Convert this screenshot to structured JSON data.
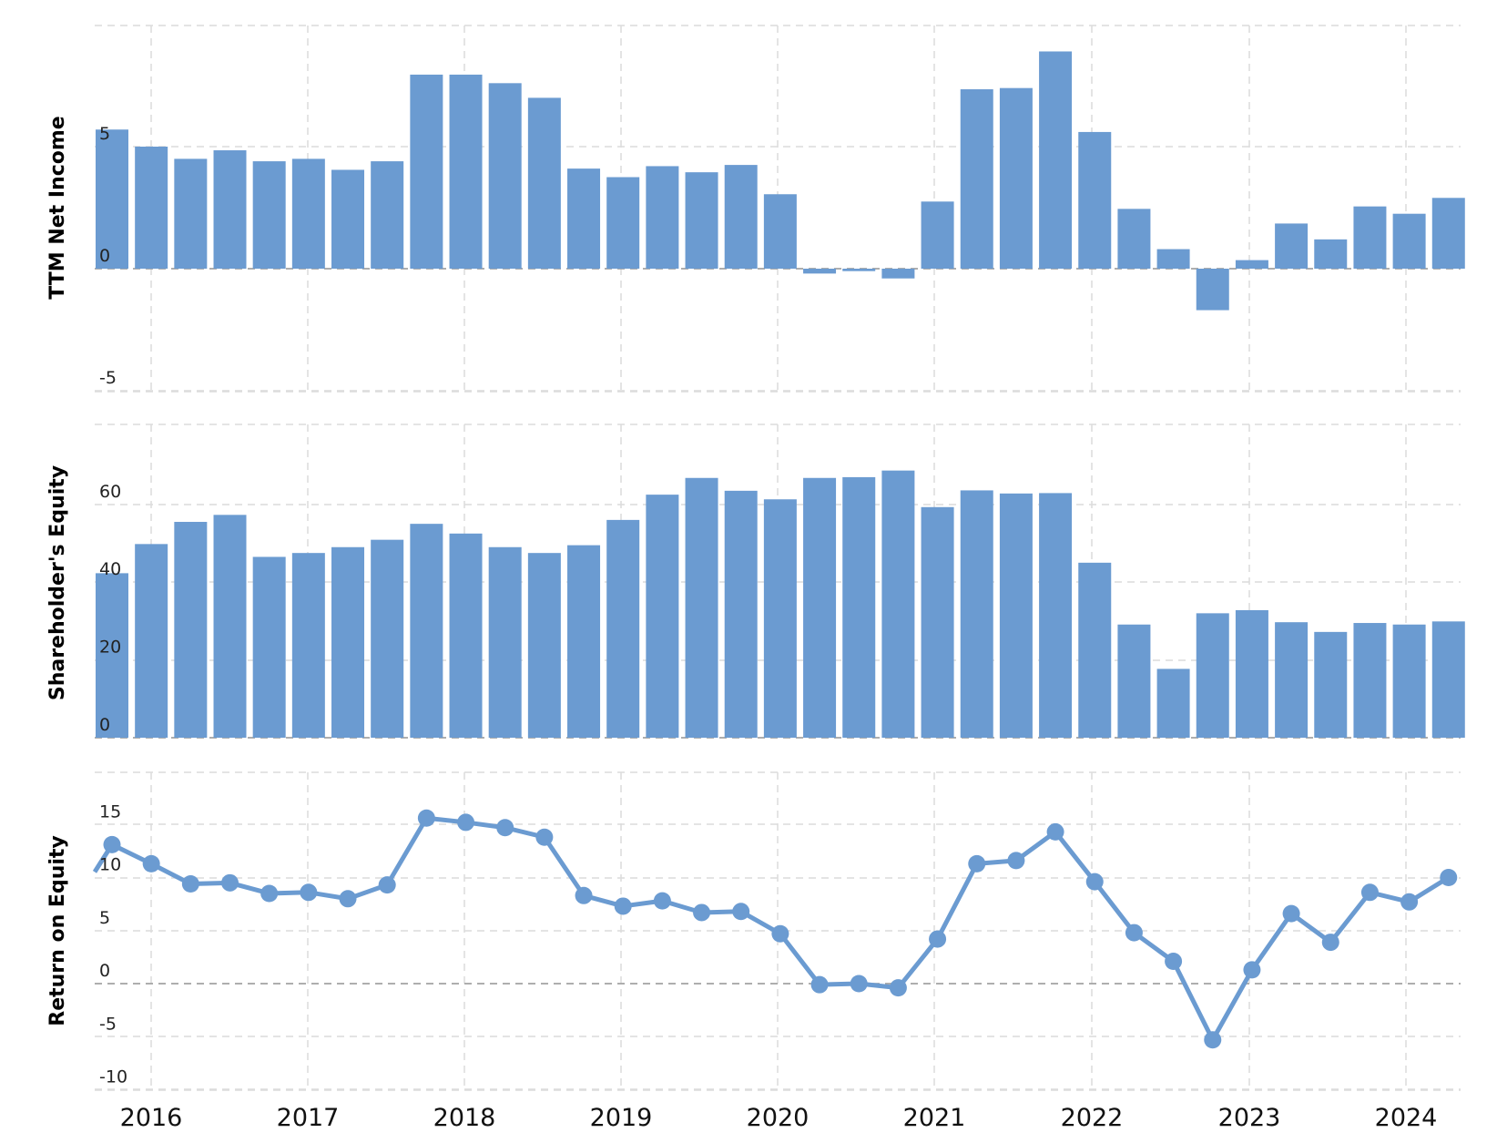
{
  "chart_data": [
    {
      "type": "bar",
      "ylabel": "TTM Net Income",
      "ylim": [
        -5,
        10
      ],
      "yticks": [
        "5",
        "0",
        "-5"
      ],
      "grid": true,
      "x": [
        "2015-Q4",
        "2016-Q1",
        "2016-Q2",
        "2016-Q3",
        "2016-Q4",
        "2017-Q1",
        "2017-Q2",
        "2017-Q3",
        "2017-Q4",
        "2018-Q1",
        "2018-Q2",
        "2018-Q3",
        "2018-Q4",
        "2019-Q1",
        "2019-Q2",
        "2019-Q3",
        "2019-Q4",
        "2020-Q1",
        "2020-Q2",
        "2020-Q3",
        "2020-Q4",
        "2021-Q1",
        "2021-Q2",
        "2021-Q3",
        "2021-Q4",
        "2022-Q1",
        "2022-Q2",
        "2022-Q3",
        "2022-Q4",
        "2023-Q1",
        "2023-Q2",
        "2023-Q3",
        "2023-Q4",
        "2024-Q1",
        "2024-Q2"
      ],
      "values": [
        5.7,
        5.0,
        4.5,
        4.85,
        4.4,
        4.5,
        4.05,
        4.4,
        7.95,
        7.95,
        7.6,
        7.0,
        4.1,
        3.75,
        4.2,
        3.95,
        4.25,
        3.05,
        -0.2,
        -0.1,
        -0.4,
        2.75,
        7.35,
        7.4,
        8.9,
        5.6,
        2.45,
        0.8,
        -1.7,
        0.35,
        1.85,
        1.2,
        2.55,
        2.25,
        2.9
      ]
    },
    {
      "type": "bar",
      "ylabel": "Shareholder's Equity",
      "ylim": [
        0,
        80
      ],
      "yticks": [
        "60",
        "40",
        "20",
        "0"
      ],
      "grid": true,
      "x": [
        "2015-Q4",
        "2016-Q1",
        "2016-Q2",
        "2016-Q3",
        "2016-Q4",
        "2017-Q1",
        "2017-Q2",
        "2017-Q3",
        "2017-Q4",
        "2018-Q1",
        "2018-Q2",
        "2018-Q3",
        "2018-Q4",
        "2019-Q1",
        "2019-Q2",
        "2019-Q3",
        "2019-Q4",
        "2020-Q1",
        "2020-Q2",
        "2020-Q3",
        "2020-Q4",
        "2021-Q1",
        "2021-Q2",
        "2021-Q3",
        "2021-Q4",
        "2022-Q1",
        "2022-Q2",
        "2022-Q3",
        "2022-Q4",
        "2023-Q1",
        "2023-Q2",
        "2023-Q3",
        "2023-Q4",
        "2024-Q1",
        "2024-Q2"
      ],
      "values": [
        42.3,
        49.8,
        55.5,
        57.3,
        46.5,
        47.5,
        49.0,
        50.9,
        55.0,
        52.5,
        49.0,
        47.5,
        49.5,
        56.0,
        62.5,
        66.8,
        63.5,
        61.3,
        66.8,
        67.0,
        68.7,
        59.3,
        63.6,
        62.8,
        62.9,
        45.0,
        29.1,
        17.7,
        32.0,
        32.8,
        29.7,
        27.2,
        29.5,
        29.1,
        29.9
      ]
    },
    {
      "type": "line",
      "ylabel": "Return on Equity",
      "ylim": [
        -10,
        20
      ],
      "yticks": [
        "15",
        "10",
        "5",
        "0",
        "-5",
        "-10"
      ],
      "grid": true,
      "markers": true,
      "x": [
        "2015-Q4",
        "2016-Q1",
        "2016-Q2",
        "2016-Q3",
        "2016-Q4",
        "2017-Q1",
        "2017-Q2",
        "2017-Q3",
        "2017-Q4",
        "2018-Q1",
        "2018-Q2",
        "2018-Q3",
        "2018-Q4",
        "2019-Q1",
        "2019-Q2",
        "2019-Q3",
        "2019-Q4",
        "2020-Q1",
        "2020-Q2",
        "2020-Q3",
        "2020-Q4",
        "2021-Q1",
        "2021-Q2",
        "2021-Q3",
        "2021-Q4",
        "2022-Q1",
        "2022-Q2",
        "2022-Q3",
        "2022-Q4",
        "2023-Q1",
        "2023-Q2",
        "2023-Q3",
        "2023-Q4",
        "2024-Q1",
        "2024-Q2"
      ],
      "values": [
        13.1,
        11.3,
        9.4,
        9.5,
        8.5,
        8.6,
        8.0,
        9.3,
        15.6,
        15.2,
        14.7,
        13.8,
        8.3,
        7.3,
        7.8,
        6.7,
        6.8,
        4.7,
        -0.1,
        0.0,
        -0.4,
        4.2,
        11.3,
        11.6,
        14.3,
        9.6,
        4.8,
        2.1,
        -5.3,
        1.3,
        6.6,
        3.9,
        8.6,
        7.7,
        10.0
      ]
    }
  ],
  "x_axis": {
    "tick_labels": [
      "2016",
      "2017",
      "2018",
      "2019",
      "2020",
      "2021",
      "2022",
      "2023",
      "2024"
    ]
  },
  "colors": {
    "series": "#6b9bd1",
    "grid": "#dcdcdc",
    "zero_line": "#999999"
  }
}
